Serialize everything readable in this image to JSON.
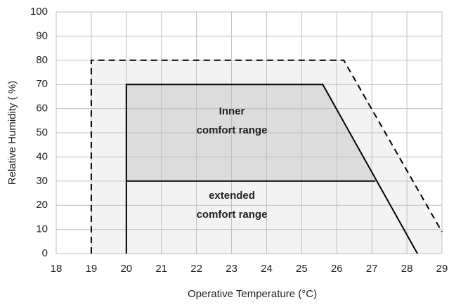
{
  "chart_data": {
    "type": "line",
    "xlabel": "Operative Temperature (°C)",
    "ylabel": "Relative Humidity ( %)",
    "xlim": [
      18,
      29
    ],
    "xticks": [
      18,
      19,
      20,
      21,
      22,
      23,
      24,
      25,
      26,
      27,
      28,
      29
    ],
    "ylim": [
      0,
      100
    ],
    "yticks": [
      0,
      10,
      20,
      30,
      40,
      50,
      60,
      70,
      80,
      90,
      100
    ],
    "grid": true,
    "areas": [
      {
        "color": "#f3f3f3",
        "x": [
          19,
          19,
          26.2,
          29,
          29
        ],
        "values": [
          0,
          80,
          80,
          9,
          0
        ]
      },
      {
        "color": "#dcdcdc",
        "x": [
          20,
          20,
          25.6,
          27.1
        ],
        "values": [
          30,
          70,
          70,
          30
        ]
      }
    ],
    "series": [
      {
        "color": "#000000",
        "dashed": true,
        "x": [
          19,
          19,
          26.2,
          29
        ],
        "values": [
          0,
          80,
          80,
          9
        ]
      },
      {
        "color": "#000000",
        "dashed": false,
        "x": [
          20,
          20,
          25.6,
          28.3
        ],
        "values": [
          0,
          70,
          70,
          0
        ]
      },
      {
        "color": "#000000",
        "dashed": false,
        "x": [
          20,
          27.1
        ],
        "values": [
          30,
          30
        ]
      }
    ],
    "annotations": [
      "Inner",
      "comfort range",
      "extended",
      "comfort range"
    ]
  }
}
